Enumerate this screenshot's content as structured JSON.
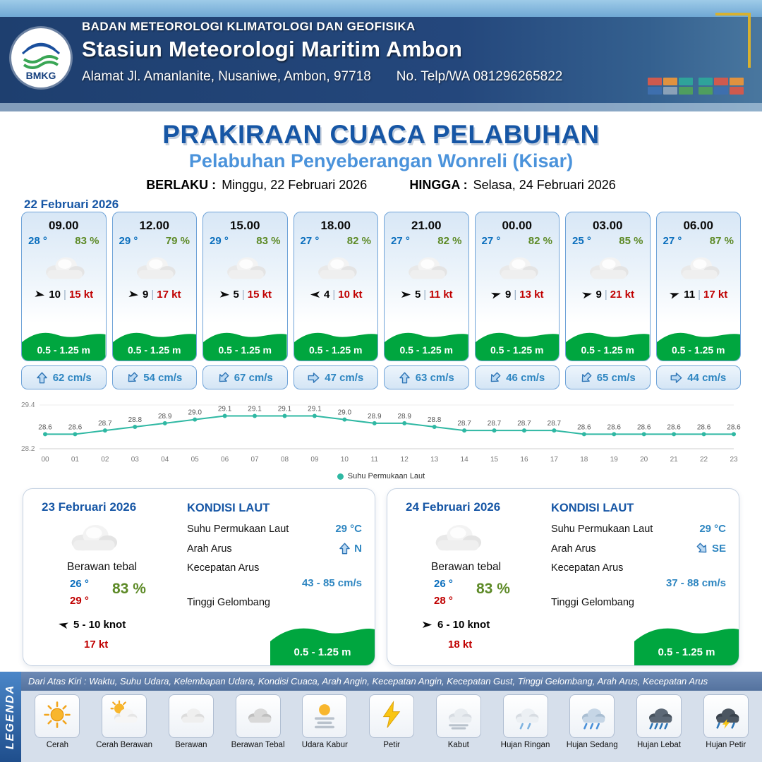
{
  "ui": {
    "sep": "|"
  },
  "header": {
    "logo": "BMKG",
    "org": "BADAN METEOROLOGI KLIMATOLOGI DAN GEOFISIKA",
    "station": "Stasiun Meteorologi Maritim Ambon",
    "address": "Alamat Jl. Amanlanite, Nusaniwe, Ambon, 97718",
    "contact": "No. Telp/WA  081296265822"
  },
  "title": {
    "main": "PRAKIRAAN CUACA PELABUHAN",
    "sub": "Pelabuhan Penyeberangan Wonreli (Kisar)",
    "berlaku_label": "BERLAKU :",
    "berlaku_value": "Minggu, 22 Februari 2026",
    "hingga_label": "HINGGA :",
    "hingga_value": "Selasa, 24 Februari 2026"
  },
  "forecast": {
    "date": "22 Februari 2026",
    "cards": [
      {
        "time": "09.00",
        "temp": "28 °",
        "humidity": "83 %",
        "wind": "10",
        "gust": "15 kt",
        "wave": "0.5 - 1.25 m",
        "current": "62 cm/s",
        "wind_rot": 10,
        "current_rot": 0
      },
      {
        "time": "12.00",
        "temp": "29 °",
        "humidity": "79 %",
        "wind": "9",
        "gust": "17 kt",
        "wave": "0.5 - 1.25 m",
        "current": "54 cm/s",
        "wind_rot": 8,
        "current_rot": 225
      },
      {
        "time": "15.00",
        "temp": "29 °",
        "humidity": "83 %",
        "wind": "5",
        "gust": "15 kt",
        "wave": "0.5 - 1.25 m",
        "current": "67 cm/s",
        "wind_rot": 3,
        "current_rot": 225
      },
      {
        "time": "18.00",
        "temp": "27 °",
        "humidity": "82 %",
        "wind": "4",
        "gust": "10 kt",
        "wave": "0.5 - 1.25 m",
        "current": "47 cm/s",
        "wind_rot": 180,
        "current_rot": 90
      },
      {
        "time": "21.00",
        "temp": "27 °",
        "humidity": "82 %",
        "wind": "5",
        "gust": "11 kt",
        "wave": "0.5 - 1.25 m",
        "current": "63 cm/s",
        "wind_rot": 0,
        "current_rot": 0
      },
      {
        "time": "00.00",
        "temp": "27 °",
        "humidity": "82 %",
        "wind": "9",
        "gust": "13 kt",
        "wave": "0.5 - 1.25 m",
        "current": "46 cm/s",
        "wind_rot": -15,
        "current_rot": 225
      },
      {
        "time": "03.00",
        "temp": "25 °",
        "humidity": "85 %",
        "wind": "9",
        "gust": "21 kt",
        "wave": "0.5 - 1.25 m",
        "current": "65 cm/s",
        "wind_rot": -12,
        "current_rot": 225
      },
      {
        "time": "06.00",
        "temp": "27 °",
        "humidity": "87 %",
        "wind": "11",
        "gust": "17 kt",
        "wave": "0.5 - 1.25 m",
        "current": "44 cm/s",
        "wind_rot": -18,
        "current_rot": 90
      }
    ]
  },
  "chart_data": {
    "type": "line",
    "series_name": "Suhu Permukaan Laut",
    "x": [
      "00",
      "01",
      "02",
      "03",
      "04",
      "05",
      "06",
      "07",
      "08",
      "09",
      "10",
      "11",
      "12",
      "13",
      "14",
      "15",
      "16",
      "17",
      "18",
      "19",
      "20",
      "21",
      "22",
      "23"
    ],
    "values": [
      28.6,
      28.6,
      28.7,
      28.8,
      28.9,
      29.0,
      29.1,
      29.1,
      29.1,
      29.1,
      29.0,
      28.9,
      28.9,
      28.8,
      28.7,
      28.7,
      28.7,
      28.7,
      28.6,
      28.6,
      28.6,
      28.6,
      28.6,
      28.6
    ],
    "ylim": [
      28.2,
      29.4
    ],
    "line_color": "#2fb8a3",
    "legend_position": "bottom",
    "grid": false
  },
  "days": [
    {
      "date": "23 Februari 2026",
      "condition": "Berawan tebal",
      "temp_min": "26 °",
      "temp_max": "29 °",
      "humidity": "83 %",
      "wind_range": "5 - 10 knot",
      "gust": "17 kt",
      "wind_rot": 192,
      "sea": {
        "title": "KONDISI LAUT",
        "sst_label": "Suhu Permukaan Laut",
        "sst": "29 °C",
        "dir_label": "Arah Arus",
        "dir": "N",
        "dir_rot": 0,
        "speed_label": "Kecepatan Arus",
        "speed": "43 - 85 cm/s",
        "wave_label": "Tinggi Gelombang",
        "wave": "0.5 - 1.25 m"
      }
    },
    {
      "date": "24 Februari 2026",
      "condition": "Berawan tebal",
      "temp_min": "26 °",
      "temp_max": "28 °",
      "humidity": "83 %",
      "wind_range": "6 - 10 knot",
      "gust": "18 kt",
      "wind_rot": 0,
      "sea": {
        "title": "KONDISI LAUT",
        "sst_label": "Suhu Permukaan Laut",
        "sst": "29 °C",
        "dir_label": "Arah Arus",
        "dir": "SE",
        "dir_rot": 135,
        "speed_label": "Kecepatan Arus",
        "speed": "37 - 88 cm/s",
        "wave_label": "Tinggi Gelombang",
        "wave": "0.5 - 1.25 m"
      }
    }
  ],
  "legend": {
    "title": "LEGENDA",
    "caption": "Dari Atas Kiri : Waktu, Suhu Udara, Kelembapan Udara, Kondisi Cuaca, Arah Angin, Kecepatan Angin, Kecepatan Gust, Tinggi Gelombang, Arah Arus, Kecepatan Arus",
    "items": [
      {
        "label": "Cerah",
        "icon": "sun"
      },
      {
        "label": "Cerah Berawan",
        "icon": "sun-cloud"
      },
      {
        "label": "Berawan",
        "icon": "cloud"
      },
      {
        "label": "Berawan Tebal",
        "icon": "cloud-thick"
      },
      {
        "label": "Udara Kabur",
        "icon": "haze"
      },
      {
        "label": "Petir",
        "icon": "lightning"
      },
      {
        "label": "Kabut",
        "icon": "fog"
      },
      {
        "label": "Hujan Ringan",
        "icon": "rain-light"
      },
      {
        "label": "Hujan Sedang",
        "icon": "rain-mid"
      },
      {
        "label": "Hujan Lebat",
        "icon": "rain-heavy"
      },
      {
        "label": "Hujan Petir",
        "icon": "rain-thunder"
      }
    ]
  }
}
